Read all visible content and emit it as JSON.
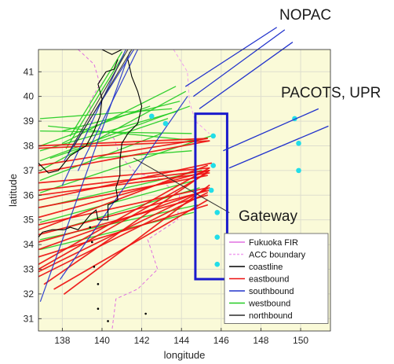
{
  "chart_data": {
    "type": "line",
    "xlabel": "longitude",
    "ylabel": "latitude",
    "xlim": [
      136.8,
      151.5
    ],
    "ylim": [
      30.5,
      41.9
    ],
    "x_ticks": [
      "138",
      "140",
      "142",
      "144",
      "146",
      "148",
      "150"
    ],
    "y_ticks": [
      "31",
      "32",
      "33",
      "34",
      "35",
      "36",
      "37",
      "38",
      "39",
      "40",
      "41"
    ],
    "grid": true,
    "legend_position": "bottom-right",
    "annotations": {
      "nopac": "NOPAC",
      "pacots": "PACOTS, UPR",
      "gateway": "Gateway"
    },
    "colors": {
      "fir": "#e070e0",
      "acc": "#f0a0f0",
      "coastline": "#000000",
      "eastbound": "#ee1111",
      "southbound": "#2233cc",
      "westbound": "#22cc22",
      "northbound": "#2a2a2a",
      "waypoint": "#22dde8",
      "gateway_box": "#1a1acc",
      "background": "#fafad8"
    },
    "legend": [
      {
        "label": "Fukuoka FIR",
        "color": "#e070e0",
        "dash": false
      },
      {
        "label": "ACC boundary",
        "color": "#f0a0f0",
        "dash": true
      },
      {
        "label": "coastline",
        "color": "#000000",
        "dash": false
      },
      {
        "label": "eastbound",
        "color": "#ee1111",
        "dash": false
      },
      {
        "label": "southbound",
        "color": "#2233cc",
        "dash": false
      },
      {
        "label": "westbound",
        "color": "#22cc22",
        "dash": false
      },
      {
        "label": "northbound",
        "color": "#2a2a2a",
        "dash": false
      }
    ],
    "gateway_box": {
      "lon": [
        144.7,
        146.3
      ],
      "lat": [
        32.6,
        39.3
      ]
    },
    "gateway_points": [
      [
        145.6,
        38.4
      ],
      [
        145.6,
        37.2
      ],
      [
        145.5,
        36.2
      ],
      [
        145.8,
        35.3
      ],
      [
        145.8,
        34.3
      ],
      [
        145.8,
        33.2
      ]
    ],
    "pacots_points": [
      [
        149.7,
        39.1
      ],
      [
        149.9,
        38.1
      ],
      [
        149.9,
        37.0
      ]
    ],
    "inland_points": [
      [
        142.5,
        39.2
      ],
      [
        143.2,
        38.9
      ]
    ],
    "nopac_lines": [
      [
        [
          144.2,
          40.4
        ],
        [
          148.8,
          42.8
        ]
      ],
      [
        [
          144.6,
          40.0
        ],
        [
          149.2,
          42.7
        ]
      ],
      [
        [
          144.9,
          39.5
        ],
        [
          149.6,
          42.2
        ]
      ]
    ],
    "pacots_lines": [
      [
        [
          146.1,
          37.8
        ],
        [
          150.9,
          39.5
        ]
      ],
      [
        [
          146.4,
          37.1
        ],
        [
          151.4,
          38.8
        ]
      ]
    ],
    "fir_boundary": [
      [
        138.8,
        41.9
      ],
      [
        139.6,
        41.3
      ],
      [
        139.9,
        40.5
      ],
      [
        139.4,
        39.8
      ],
      [
        139.4,
        39.0
      ],
      [
        140.6,
        38.3
      ],
      [
        140.9,
        37.6
      ],
      [
        141.7,
        36.9
      ],
      [
        142.8,
        36.7
      ],
      [
        143.9,
        36.0
      ],
      [
        143.8,
        35.0
      ],
      [
        142.3,
        34.2
      ],
      [
        142.8,
        33.0
      ],
      [
        141.8,
        32.2
      ],
      [
        140.7,
        31.8
      ],
      [
        140.5,
        30.5
      ]
    ],
    "acc_boundary": [
      [
        143.6,
        41.9
      ],
      [
        144.3,
        41.0
      ],
      [
        144.4,
        39.8
      ],
      [
        144.7,
        39.0
      ],
      [
        145.4,
        38.5
      ]
    ],
    "coast_honshu": [
      [
        141.3,
        41.5
      ],
      [
        141.5,
        40.8
      ],
      [
        141.8,
        40.2
      ],
      [
        142.0,
        39.6
      ],
      [
        141.8,
        38.9
      ],
      [
        141.3,
        38.5
      ],
      [
        141.0,
        38.1
      ],
      [
        140.9,
        37.4
      ],
      [
        140.9,
        36.8
      ],
      [
        140.7,
        36.3
      ],
      [
        140.8,
        35.8
      ],
      [
        140.3,
        35.6
      ],
      [
        140.3,
        35.0
      ],
      [
        139.8,
        35.0
      ],
      [
        139.7,
        35.4
      ],
      [
        139.4,
        35.2
      ],
      [
        139.1,
        34.9
      ],
      [
        138.8,
        34.6
      ],
      [
        138.4,
        34.7
      ],
      [
        138.1,
        34.6
      ],
      [
        137.5,
        34.6
      ],
      [
        137.0,
        34.5
      ],
      [
        136.8,
        34.3
      ]
    ],
    "coast_japan_sea": [
      [
        136.8,
        37.3
      ],
      [
        137.3,
        36.9
      ],
      [
        137.8,
        37.0
      ],
      [
        138.4,
        37.6
      ],
      [
        139.2,
        38.0
      ],
      [
        139.6,
        38.6
      ],
      [
        139.9,
        39.2
      ],
      [
        140.0,
        39.9
      ],
      [
        139.8,
        40.5
      ],
      [
        140.2,
        41.0
      ],
      [
        140.6,
        41.1
      ],
      [
        140.8,
        41.5
      ]
    ],
    "coast_hokkaido": [
      [
        140.0,
        41.9
      ],
      [
        140.5,
        41.7
      ],
      [
        141.0,
        41.9
      ]
    ],
    "islands": [
      [
        139.4,
        34.7
      ],
      [
        139.5,
        34.1
      ],
      [
        139.6,
        33.1
      ],
      [
        139.8,
        32.4
      ],
      [
        139.8,
        31.4
      ],
      [
        140.3,
        30.9
      ],
      [
        142.2,
        31.2
      ]
    ],
    "eastbound_routes": [
      [
        [
          136.8,
          38.0
        ],
        [
          145.3,
          38.3
        ]
      ],
      [
        [
          136.8,
          37.9
        ],
        [
          145.4,
          38.2
        ]
      ],
      [
        [
          136.8,
          37.2
        ],
        [
          145.3,
          38.3
        ]
      ],
      [
        [
          136.8,
          36.9
        ],
        [
          145.4,
          38.2
        ]
      ],
      [
        [
          136.8,
          36.5
        ],
        [
          145.4,
          37.1
        ]
      ],
      [
        [
          136.8,
          36.2
        ],
        [
          145.4,
          37.0
        ]
      ],
      [
        [
          136.8,
          35.8
        ],
        [
          145.5,
          37.3
        ]
      ],
      [
        [
          136.8,
          35.5
        ],
        [
          145.3,
          36.8
        ]
      ],
      [
        [
          136.8,
          35.1
        ],
        [
          145.4,
          37.0
        ]
      ],
      [
        [
          136.8,
          34.8
        ],
        [
          145.3,
          36.3
        ]
      ],
      [
        [
          136.8,
          34.4
        ],
        [
          145.4,
          36.2
        ]
      ],
      [
        [
          136.8,
          34.1
        ],
        [
          145.3,
          36.0
        ]
      ],
      [
        [
          136.8,
          33.8
        ],
        [
          145.2,
          36.2
        ]
      ],
      [
        [
          136.8,
          33.5
        ],
        [
          145.3,
          35.6
        ]
      ],
      [
        [
          136.8,
          33.2
        ],
        [
          145.4,
          37.1
        ]
      ],
      [
        [
          136.8,
          32.9
        ],
        [
          145.4,
          36.3
        ]
      ],
      [
        [
          136.8,
          32.7
        ],
        [
          145.3,
          36.1
        ]
      ],
      [
        [
          137.1,
          32.4
        ],
        [
          145.4,
          37.0
        ]
      ],
      [
        [
          137.6,
          32.2
        ],
        [
          145.3,
          35.8
        ]
      ],
      [
        [
          138.1,
          32.0
        ],
        [
          145.4,
          36.4
        ]
      ],
      [
        [
          136.8,
          36.0
        ],
        [
          145.4,
          36.9
        ]
      ],
      [
        [
          136.8,
          34.6
        ],
        [
          145.3,
          37.2
        ]
      ],
      [
        [
          136.8,
          33.0
        ],
        [
          145.3,
          36.9
        ]
      ]
    ],
    "westbound_routes": [
      [
        [
          144.8,
          38.2
        ],
        [
          137.3,
          38.8
        ]
      ],
      [
        [
          144.5,
          38.5
        ],
        [
          136.9,
          38.6
        ]
      ],
      [
        [
          143.5,
          39.5
        ],
        [
          136.9,
          39.1
        ]
      ],
      [
        [
          143.8,
          39.4
        ],
        [
          136.9,
          37.8
        ]
      ],
      [
        [
          144.4,
          39.6
        ],
        [
          136.9,
          37.4
        ]
      ],
      [
        [
          143.0,
          38.5
        ],
        [
          136.9,
          36.6
        ]
      ],
      [
        [
          145.5,
          38.4
        ],
        [
          136.9,
          36.1
        ]
      ],
      [
        [
          143.9,
          39.8
        ],
        [
          138.0,
          38.6
        ]
      ],
      [
        [
          144.2,
          40.2
        ],
        [
          136.9,
          37.0
        ]
      ],
      [
        [
          145.0,
          37.0
        ],
        [
          136.9,
          35.5
        ]
      ],
      [
        [
          144.7,
          36.6
        ],
        [
          136.9,
          34.9
        ]
      ],
      [
        [
          144.8,
          35.6
        ],
        [
          136.9,
          34.2
        ]
      ],
      [
        [
          144.6,
          35.3
        ],
        [
          136.9,
          33.8
        ]
      ],
      [
        [
          144.9,
          36.3
        ],
        [
          138.2,
          34.7
        ]
      ],
      [
        [
          143.7,
          40.4
        ],
        [
          138.0,
          38.1
        ]
      ],
      [
        [
          142.4,
          39.6
        ],
        [
          136.9,
          38.0
        ]
      ],
      [
        [
          144.5,
          37.8
        ],
        [
          139.8,
          37.5
        ]
      ],
      [
        [
          143.3,
          39.1
        ],
        [
          137.4,
          37.5
        ]
      ],
      [
        [
          141.1,
          41.7
        ],
        [
          138.2,
          37.9
        ]
      ],
      [
        [
          141.0,
          41.8
        ],
        [
          138.4,
          38.4
        ]
      ]
    ],
    "southbound_routes": [
      [
        [
          141.4,
          41.8
        ],
        [
          136.9,
          31.7
        ]
      ],
      [
        [
          144.3,
          40.0
        ],
        [
          137.9,
          32.6
        ]
      ],
      [
        [
          141.2,
          41.9
        ],
        [
          138.0,
          36.4
        ]
      ],
      [
        [
          141.6,
          41.9
        ],
        [
          138.1,
          37.4
        ]
      ],
      [
        [
          141.8,
          41.9
        ],
        [
          138.8,
          37.0
        ]
      ]
    ],
    "northbound_routes": [
      [
        [
          138.3,
          37.7
        ],
        [
          141.3,
          41.9
        ]
      ],
      [
        [
          138.6,
          38.0
        ],
        [
          141.5,
          41.9
        ]
      ],
      [
        [
          141.6,
          37.5
        ],
        [
          146.4,
          35.3
        ]
      ]
    ]
  }
}
